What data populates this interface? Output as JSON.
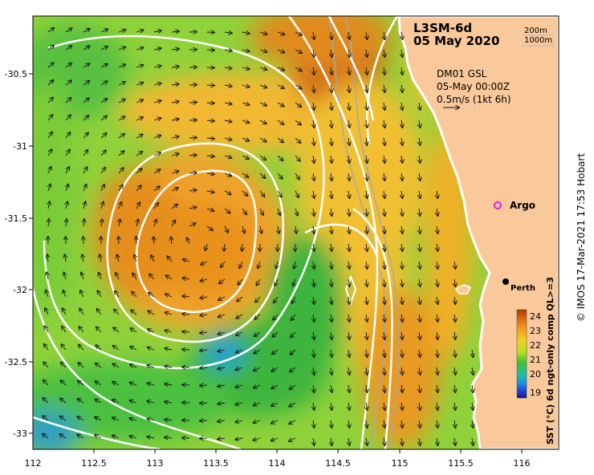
{
  "product": {
    "name": "L3SM-6d",
    "date": "05 May 2020"
  },
  "contours_legend": {
    "line1": "200m",
    "line2": "1000m"
  },
  "currents": {
    "source": "DM01 GSL",
    "time": "05-May 00:00Z",
    "scale": "0.5m/s (1kt 6h)"
  },
  "places": {
    "argo": {
      "label": "Argo",
      "lon": 115.87,
      "lat": -31.45,
      "color": "#e020e0"
    },
    "perth": {
      "label": "Perth",
      "lon": 115.87,
      "lat": -31.95
    }
  },
  "colorbar": {
    "label": "SST (°C) 6d ngt-only comp QL>=3",
    "min": 18.5,
    "max": 24.5,
    "ticks": [
      "24",
      "23",
      "22",
      "21",
      "20",
      "19"
    ]
  },
  "axes": {
    "x_ticks": [
      "112",
      "112.5",
      "113",
      "113.5",
      "114",
      "114.5",
      "115",
      "115.5",
      "116"
    ],
    "y_ticks": [
      "-30.5",
      "-31",
      "-31.5",
      "-32",
      "-32.5",
      "-33"
    ],
    "lon_range": [
      112,
      116.3
    ],
    "lat_range": [
      -30.08,
      -33.15
    ]
  },
  "credit": "© IMOS 17-Mar-2021 17:53 Hobart",
  "colors": {
    "land": "#f9c89b",
    "sst_warm": "#c85a10",
    "sst_cool": "#2aa02a"
  }
}
